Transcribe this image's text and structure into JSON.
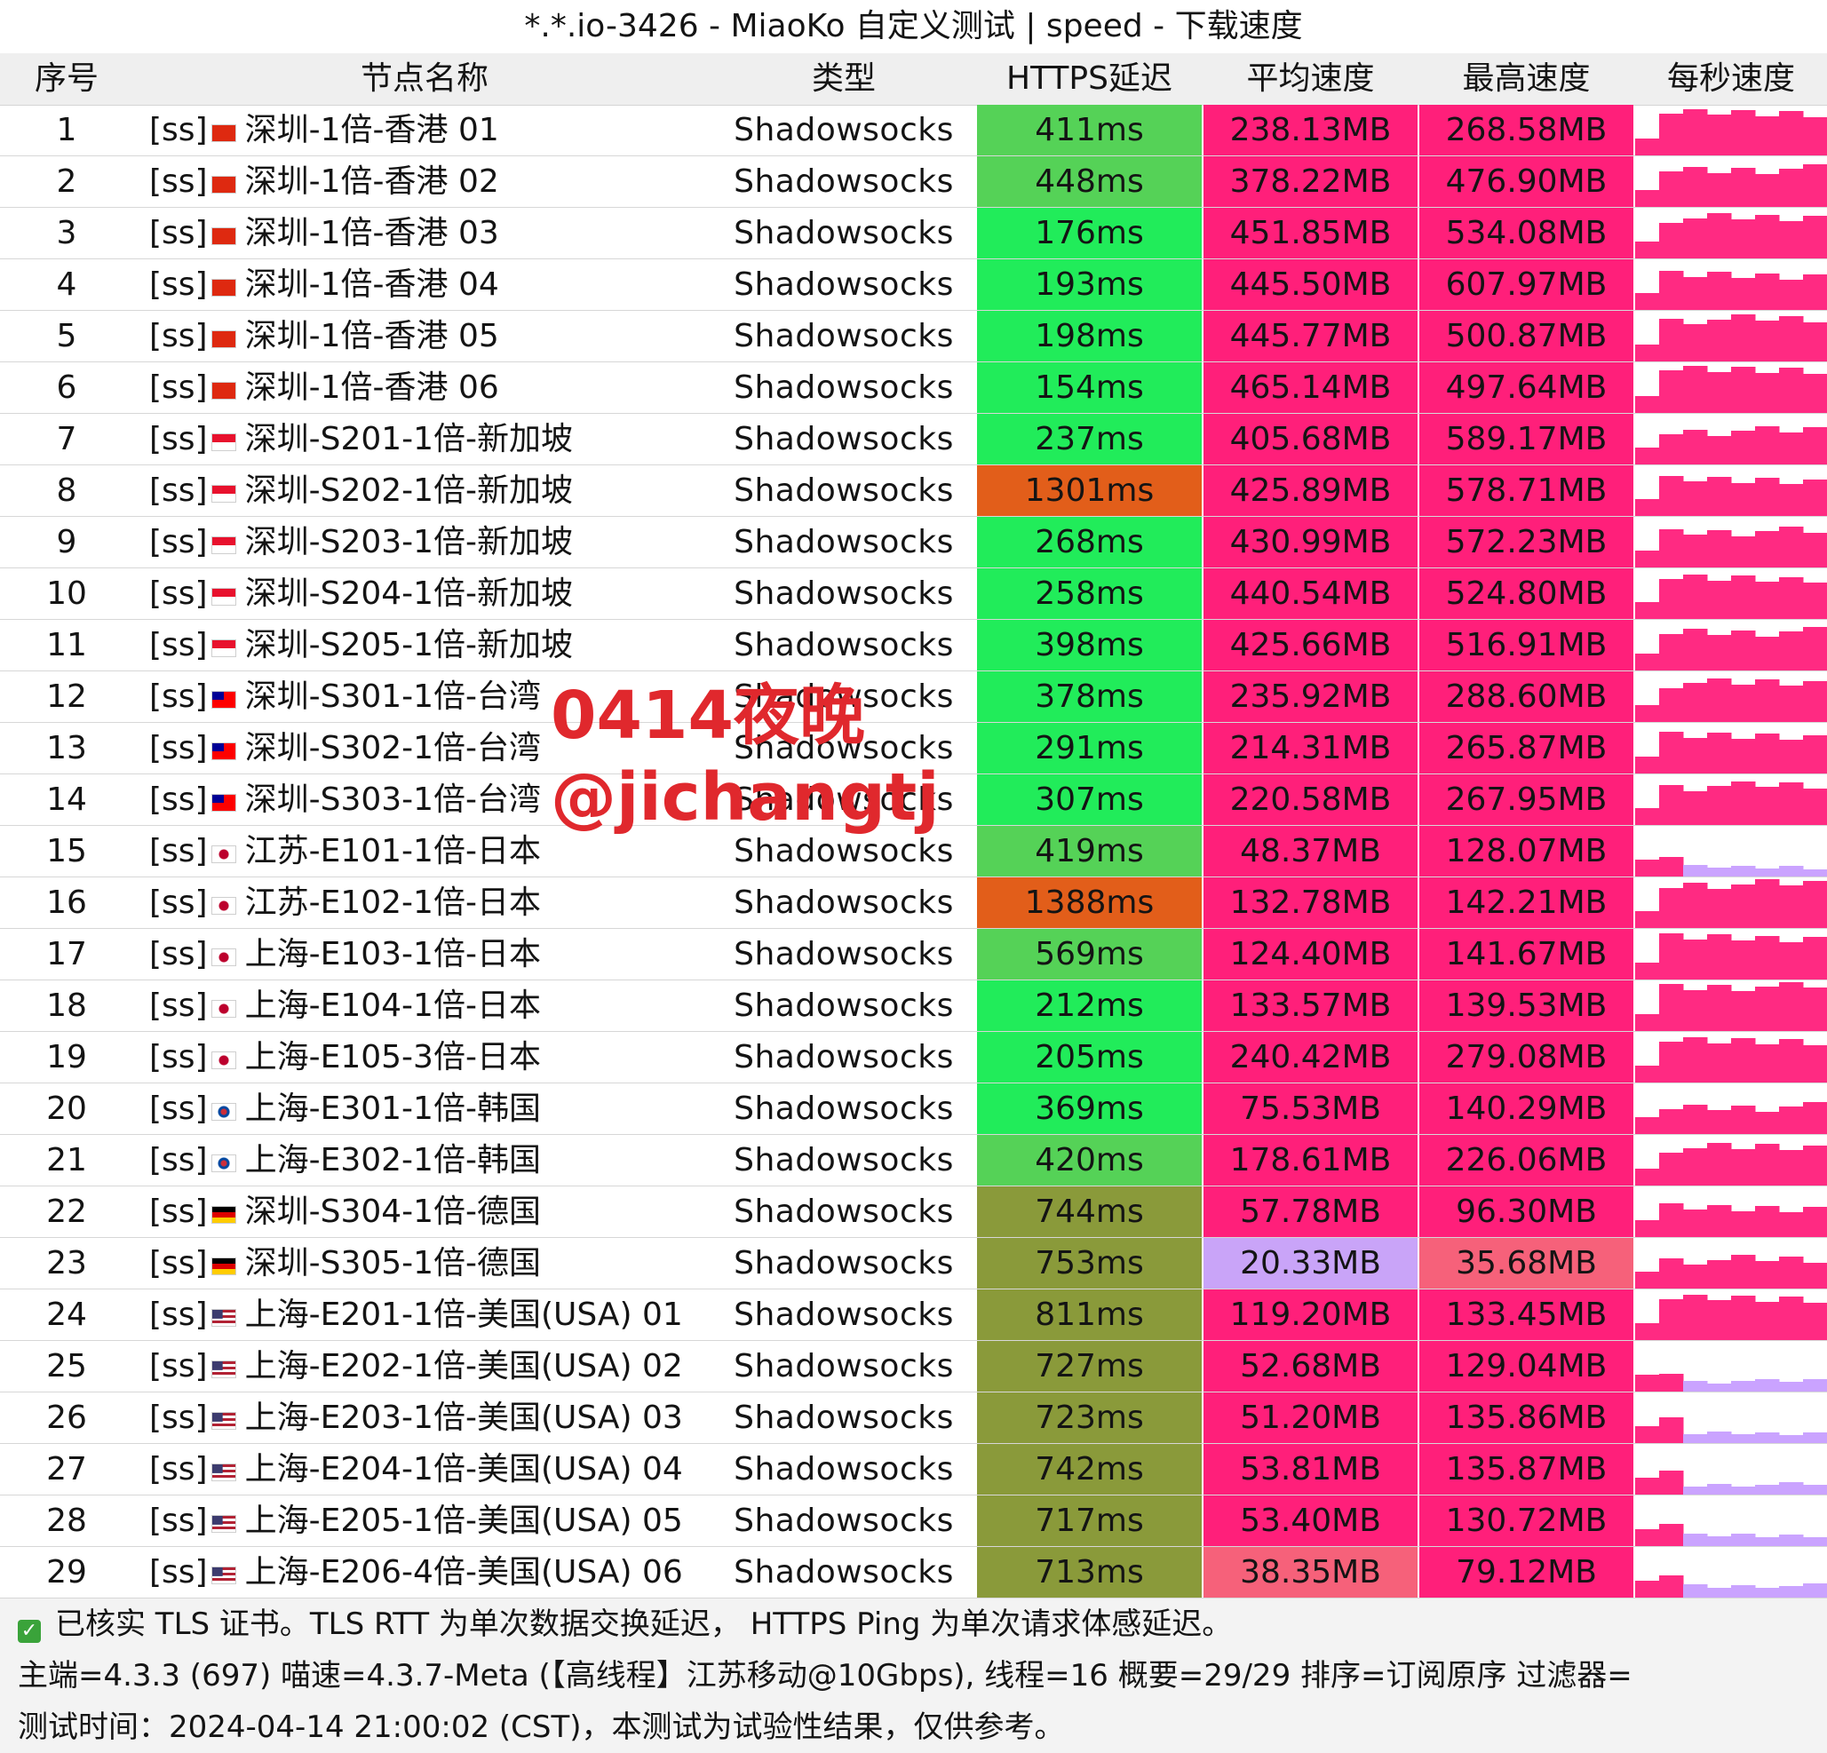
{
  "title": "*.*.io-3426 - MiaoKo 自定义测试 | speed - 下载速度",
  "headers": {
    "index": "序号",
    "name": "节点名称",
    "type": "类型",
    "latency": "HTTPS延迟",
    "avg_speed": "平均速度",
    "max_speed": "最高速度",
    "per_second": "每秒速度"
  },
  "rows": [
    {
      "index": "1",
      "prefix": "[ss]",
      "flag": "flag-hk",
      "name": "深圳-1倍-香港 01",
      "type": "Shadowsocks",
      "latency": "411ms",
      "avg": "238.13MB",
      "max": "268.58MB"
    },
    {
      "index": "2",
      "prefix": "[ss]",
      "flag": "flag-hk",
      "name": "深圳-1倍-香港 02",
      "type": "Shadowsocks",
      "latency": "448ms",
      "avg": "378.22MB",
      "max": "476.90MB"
    },
    {
      "index": "3",
      "prefix": "[ss]",
      "flag": "flag-hk",
      "name": "深圳-1倍-香港 03",
      "type": "Shadowsocks",
      "latency": "176ms",
      "avg": "451.85MB",
      "max": "534.08MB"
    },
    {
      "index": "4",
      "prefix": "[ss]",
      "flag": "flag-hk",
      "name": "深圳-1倍-香港 04",
      "type": "Shadowsocks",
      "latency": "193ms",
      "avg": "445.50MB",
      "max": "607.97MB"
    },
    {
      "index": "5",
      "prefix": "[ss]",
      "flag": "flag-hk",
      "name": "深圳-1倍-香港 05",
      "type": "Shadowsocks",
      "latency": "198ms",
      "avg": "445.77MB",
      "max": "500.87MB"
    },
    {
      "index": "6",
      "prefix": "[ss]",
      "flag": "flag-hk",
      "name": "深圳-1倍-香港 06",
      "type": "Shadowsocks",
      "latency": "154ms",
      "avg": "465.14MB",
      "max": "497.64MB"
    },
    {
      "index": "7",
      "prefix": "[ss]",
      "flag": "flag-sg",
      "name": "深圳-S201-1倍-新加坡",
      "type": "Shadowsocks",
      "latency": "237ms",
      "avg": "405.68MB",
      "max": "589.17MB"
    },
    {
      "index": "8",
      "prefix": "[ss]",
      "flag": "flag-sg",
      "name": "深圳-S202-1倍-新加坡",
      "type": "Shadowsocks",
      "latency": "1301ms",
      "avg": "425.89MB",
      "max": "578.71MB"
    },
    {
      "index": "9",
      "prefix": "[ss]",
      "flag": "flag-sg",
      "name": "深圳-S203-1倍-新加坡",
      "type": "Shadowsocks",
      "latency": "268ms",
      "avg": "430.99MB",
      "max": "572.23MB"
    },
    {
      "index": "10",
      "prefix": "[ss]",
      "flag": "flag-sg",
      "name": "深圳-S204-1倍-新加坡",
      "type": "Shadowsocks",
      "latency": "258ms",
      "avg": "440.54MB",
      "max": "524.80MB"
    },
    {
      "index": "11",
      "prefix": "[ss]",
      "flag": "flag-sg",
      "name": "深圳-S205-1倍-新加坡",
      "type": "Shadowsocks",
      "latency": "398ms",
      "avg": "425.66MB",
      "max": "516.91MB"
    },
    {
      "index": "12",
      "prefix": "[ss]",
      "flag": "flag-tw",
      "name": "深圳-S301-1倍-台湾",
      "type": "Shadowsocks",
      "latency": "378ms",
      "avg": "235.92MB",
      "max": "288.60MB"
    },
    {
      "index": "13",
      "prefix": "[ss]",
      "flag": "flag-tw",
      "name": "深圳-S302-1倍-台湾",
      "type": "Shadowsocks",
      "latency": "291ms",
      "avg": "214.31MB",
      "max": "265.87MB"
    },
    {
      "index": "14",
      "prefix": "[ss]",
      "flag": "flag-tw",
      "name": "深圳-S303-1倍-台湾",
      "type": "Shadowsocks",
      "latency": "307ms",
      "avg": "220.58MB",
      "max": "267.95MB"
    },
    {
      "index": "15",
      "prefix": "[ss]",
      "flag": "flag-jp",
      "name": "江苏-E101-1倍-日本",
      "type": "Shadowsocks",
      "latency": "419ms",
      "avg": "48.37MB",
      "max": "128.07MB"
    },
    {
      "index": "16",
      "prefix": "[ss]",
      "flag": "flag-jp",
      "name": "江苏-E102-1倍-日本",
      "type": "Shadowsocks",
      "latency": "1388ms",
      "avg": "132.78MB",
      "max": "142.21MB"
    },
    {
      "index": "17",
      "prefix": "[ss]",
      "flag": "flag-jp",
      "name": "上海-E103-1倍-日本",
      "type": "Shadowsocks",
      "latency": "569ms",
      "avg": "124.40MB",
      "max": "141.67MB"
    },
    {
      "index": "18",
      "prefix": "[ss]",
      "flag": "flag-jp",
      "name": "上海-E104-1倍-日本",
      "type": "Shadowsocks",
      "latency": "212ms",
      "avg": "133.57MB",
      "max": "139.53MB"
    },
    {
      "index": "19",
      "prefix": "[ss]",
      "flag": "flag-jp",
      "name": "上海-E105-3倍-日本",
      "type": "Shadowsocks",
      "latency": "205ms",
      "avg": "240.42MB",
      "max": "279.08MB"
    },
    {
      "index": "20",
      "prefix": "[ss]",
      "flag": "flag-kr",
      "name": "上海-E301-1倍-韩国",
      "type": "Shadowsocks",
      "latency": "369ms",
      "avg": "75.53MB",
      "max": "140.29MB"
    },
    {
      "index": "21",
      "prefix": "[ss]",
      "flag": "flag-kr",
      "name": "上海-E302-1倍-韩国",
      "type": "Shadowsocks",
      "latency": "420ms",
      "avg": "178.61MB",
      "max": "226.06MB"
    },
    {
      "index": "22",
      "prefix": "[ss]",
      "flag": "flag-de",
      "name": "深圳-S304-1倍-德国",
      "type": "Shadowsocks",
      "latency": "744ms",
      "avg": "57.78MB",
      "max": "96.30MB"
    },
    {
      "index": "23",
      "prefix": "[ss]",
      "flag": "flag-de",
      "name": "深圳-S305-1倍-德国",
      "type": "Shadowsocks",
      "latency": "753ms",
      "avg": "20.33MB",
      "max": "35.68MB"
    },
    {
      "index": "24",
      "prefix": "[ss]",
      "flag": "flag-us",
      "name": "上海-E201-1倍-美国(USA) 01",
      "type": "Shadowsocks",
      "latency": "811ms",
      "avg": "119.20MB",
      "max": "133.45MB"
    },
    {
      "index": "25",
      "prefix": "[ss]",
      "flag": "flag-us",
      "name": "上海-E202-1倍-美国(USA) 02",
      "type": "Shadowsocks",
      "latency": "727ms",
      "avg": "52.68MB",
      "max": "129.04MB"
    },
    {
      "index": "26",
      "prefix": "[ss]",
      "flag": "flag-us",
      "name": "上海-E203-1倍-美国(USA) 03",
      "type": "Shadowsocks",
      "latency": "723ms",
      "avg": "51.20MB",
      "max": "135.86MB"
    },
    {
      "index": "27",
      "prefix": "[ss]",
      "flag": "flag-us",
      "name": "上海-E204-1倍-美国(USA) 04",
      "type": "Shadowsocks",
      "latency": "742ms",
      "avg": "53.81MB",
      "max": "135.87MB"
    },
    {
      "index": "28",
      "prefix": "[ss]",
      "flag": "flag-us",
      "name": "上海-E205-1倍-美国(USA) 05",
      "type": "Shadowsocks",
      "latency": "717ms",
      "avg": "53.40MB",
      "max": "130.72MB"
    },
    {
      "index": "29",
      "prefix": "[ss]",
      "flag": "flag-us",
      "name": "上海-E206-4倍-美国(USA) 06",
      "type": "Shadowsocks",
      "latency": "713ms",
      "avg": "38.35MB",
      "max": "79.12MB"
    }
  ],
  "watermark": {
    "line1": "0414夜晚",
    "line2": "@jichangtj"
  },
  "footer": {
    "line1": "已核实 TLS 证书。TLS RTT 为单次数据交换延迟， HTTPS Ping 为单次请求体感延迟。",
    "line2": "主端=4.3.3 (697) 喵速=4.3.7-Meta (【高线程】江苏移动@10Gbps), 线程=16 概要=29/29 排序=订阅原序 过滤器=",
    "line3": "测试时间：2024-04-14 21:00:02 (CST)，本测试为试验性结果，仅供参考。"
  },
  "colors": {
    "lat_fast": "#21ec5a",
    "lat_mid": "#55d257",
    "lat_slow": "#8a9a3a",
    "lat_bad": "#e25e1a",
    "speed_high": "#ff1f7a",
    "speed_low": "#c9a4f8",
    "speed_low2": "#f6617a",
    "spark": "#ff2a82",
    "spark_low": "#caa3ff"
  }
}
